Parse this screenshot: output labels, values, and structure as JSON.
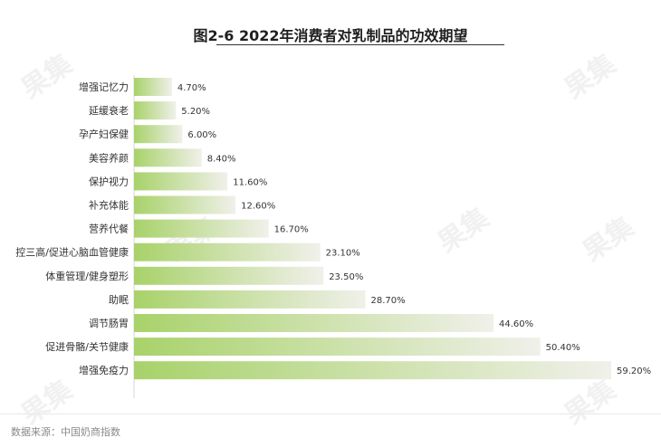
{
  "title": "图2-6 2022年消费者对乳制品的功效期望",
  "source": "数据来源：中国奶商指数",
  "colors": {
    "bar_start": "#a8d26a",
    "bar_end": "#f0f0ea"
  },
  "chart_data": {
    "type": "bar",
    "orientation": "horizontal",
    "categories": [
      "增强记忆力",
      "延缓衰老",
      "孕产妇保健",
      "美容养颜",
      "保护视力",
      "补充体能",
      "营养代餐",
      "控三高/促进心脑血管健康",
      "体重管理/健身塑形",
      "助眠",
      "调节肠胃",
      "促进骨骼/关节健康",
      "增强免疫力"
    ],
    "values": [
      4.7,
      5.2,
      6.0,
      8.4,
      11.6,
      12.6,
      16.7,
      23.1,
      23.5,
      28.7,
      44.6,
      50.4,
      59.2
    ],
    "value_labels": [
      "4.70%",
      "5.20%",
      "6.00%",
      "8.40%",
      "11.60%",
      "12.60%",
      "16.70%",
      "23.10%",
      "23.50%",
      "28.70%",
      "44.60%",
      "50.40%",
      "59.20%"
    ],
    "title": "图2-6 2022年消费者对乳制品的功效期望",
    "xlabel": "",
    "ylabel": "",
    "unit": "%",
    "grid": false,
    "legend": "none"
  }
}
